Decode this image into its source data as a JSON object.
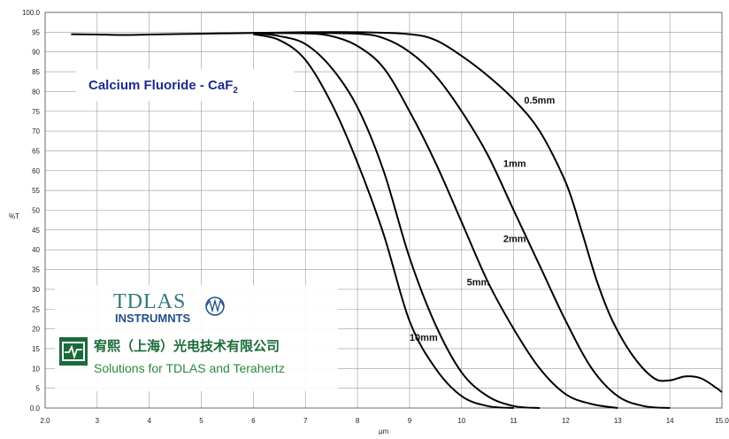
{
  "chart_data": {
    "type": "line",
    "title": "Calcium Fluoride - CaF",
    "title_subscript": "2",
    "xlabel": "µm",
    "ylabel": "%T",
    "xlim": [
      2.0,
      15.0
    ],
    "ylim": [
      0.0,
      100.0
    ],
    "grid": true,
    "x_ticks": [
      "2.0",
      "3",
      "4",
      "5",
      "6",
      "7",
      "8",
      "9",
      "10",
      "11",
      "12",
      "13",
      "14",
      "15.0"
    ],
    "y_ticks": [
      "0.0",
      "5",
      "10",
      "15",
      "20",
      "25",
      "30",
      "35",
      "40",
      "45",
      "50",
      "55",
      "60",
      "65",
      "70",
      "75",
      "80",
      "85",
      "90",
      "95",
      "100.0"
    ],
    "series": [
      {
        "name": "0.5mm",
        "label_at": [
          11.2,
          77
        ],
        "points": [
          [
            2.5,
            94.5
          ],
          [
            3,
            94.4
          ],
          [
            3.5,
            94.3
          ],
          [
            4,
            94.4
          ],
          [
            5,
            94.6
          ],
          [
            6,
            94.8
          ],
          [
            7,
            95
          ],
          [
            8,
            95
          ],
          [
            9,
            94.5
          ],
          [
            9.5,
            93
          ],
          [
            10,
            89
          ],
          [
            10.5,
            84
          ],
          [
            11,
            78
          ],
          [
            11.5,
            70
          ],
          [
            12,
            57
          ],
          [
            12.3,
            45
          ],
          [
            12.6,
            32
          ],
          [
            12.9,
            22
          ],
          [
            13.3,
            13
          ],
          [
            13.7,
            7.5
          ],
          [
            14,
            7
          ],
          [
            14.3,
            8
          ],
          [
            14.6,
            7.5
          ],
          [
            14.9,
            5
          ],
          [
            15,
            4
          ]
        ]
      },
      {
        "name": "1mm",
        "label_at": [
          10.8,
          61
        ],
        "points": [
          [
            6,
            94.8
          ],
          [
            7,
            94.8
          ],
          [
            8,
            94.6
          ],
          [
            8.5,
            93.5
          ],
          [
            9,
            90
          ],
          [
            9.5,
            84
          ],
          [
            10,
            75
          ],
          [
            10.5,
            64
          ],
          [
            11,
            50
          ],
          [
            11.5,
            36
          ],
          [
            12,
            22
          ],
          [
            12.5,
            10
          ],
          [
            13,
            3
          ],
          [
            13.5,
            0.5
          ],
          [
            14,
            0
          ]
        ]
      },
      {
        "name": "2mm",
        "label_at": [
          10.8,
          42
        ],
        "points": [
          [
            6,
            94.8
          ],
          [
            7,
            94.7
          ],
          [
            7.5,
            94
          ],
          [
            8,
            91.5
          ],
          [
            8.5,
            86
          ],
          [
            9,
            75
          ],
          [
            9.5,
            62
          ],
          [
            10,
            47
          ],
          [
            10.5,
            32
          ],
          [
            11,
            20
          ],
          [
            11.5,
            10
          ],
          [
            12,
            3.5
          ],
          [
            12.5,
            1
          ],
          [
            13,
            0
          ]
        ]
      },
      {
        "name": "5mm",
        "label_at": [
          10.1,
          31
        ],
        "points": [
          [
            6,
            94.8
          ],
          [
            6.5,
            94
          ],
          [
            7,
            92
          ],
          [
            7.5,
            86
          ],
          [
            8,
            76
          ],
          [
            8.5,
            60
          ],
          [
            9,
            38
          ],
          [
            9.5,
            21
          ],
          [
            10,
            9
          ],
          [
            10.5,
            3
          ],
          [
            11,
            0.5
          ],
          [
            11.5,
            0
          ]
        ]
      },
      {
        "name": "10mm",
        "label_at": [
          9.0,
          17
        ],
        "points": [
          [
            6,
            94.5
          ],
          [
            6.5,
            93
          ],
          [
            7,
            88
          ],
          [
            7.5,
            77
          ],
          [
            8,
            62
          ],
          [
            8.5,
            44
          ],
          [
            9,
            22
          ],
          [
            9.5,
            10
          ],
          [
            10,
            3
          ],
          [
            10.5,
            0.5
          ],
          [
            11,
            0
          ]
        ]
      }
    ]
  },
  "logo": {
    "brand": "TDLAS",
    "sub": "INSTRUMNTS",
    "company": "宥熙（上海）光电技术有限公司",
    "tagline": "Solutions for TDLAS and Terahertz"
  },
  "colors": {
    "grid": "#9a9a9a",
    "line": "#000000",
    "title": "#1f2a8c",
    "brand": "#2f7a7a",
    "company": "#1a6b3a"
  }
}
